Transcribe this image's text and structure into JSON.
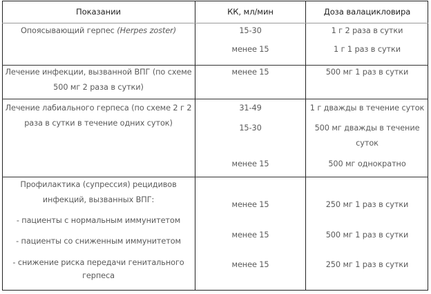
{
  "table": {
    "headers": [
      "Показании",
      "КК, мл/мин",
      "Доза валацикловира"
    ],
    "rows": [
      {
        "indication": [
          "Опоясывающий герпес ",
          "(Herpes zoster)"
        ],
        "cc": [
          "15-30",
          "менее 15"
        ],
        "dose": [
          "1 г 2 раза в сутки",
          "1 г 1 раз в сутки"
        ]
      },
      {
        "indication": [
          "Лечение инфекции, вызванной ВПГ (по схеме",
          "500 мг 2 раза в сутки)"
        ],
        "cc": [
          "менее 15"
        ],
        "dose": [
          "500 мг 1 раз в сутки"
        ]
      },
      {
        "indication": [
          "Лечение лабиального герпеса (по схеме 2 г 2",
          "раза в сутки в течение одних суток)"
        ],
        "cc": [
          "31-49",
          "15-30",
          "менее 15"
        ],
        "dose": [
          "1 г дважды в течение суток",
          "500 мг дважды в течение",
          "суток",
          "500 мг однократно"
        ]
      },
      {
        "indication": [
          "Профилактика (супрессия) рецидивов",
          "инфекций, вызванных ВПГ:",
          "- пациенты с нормальным иммунитетом",
          "- пациенты со сниженным иммунитетом",
          "- снижение риска передачи генитального",
          "герпеса"
        ],
        "cc": [
          "менее 15",
          "менее 15",
          "менее 15"
        ],
        "dose": [
          "250 мг 1 раз в сутки",
          "500 мг 1 раз в сутки",
          "250 мг 1 раз в сутки"
        ]
      }
    ]
  }
}
